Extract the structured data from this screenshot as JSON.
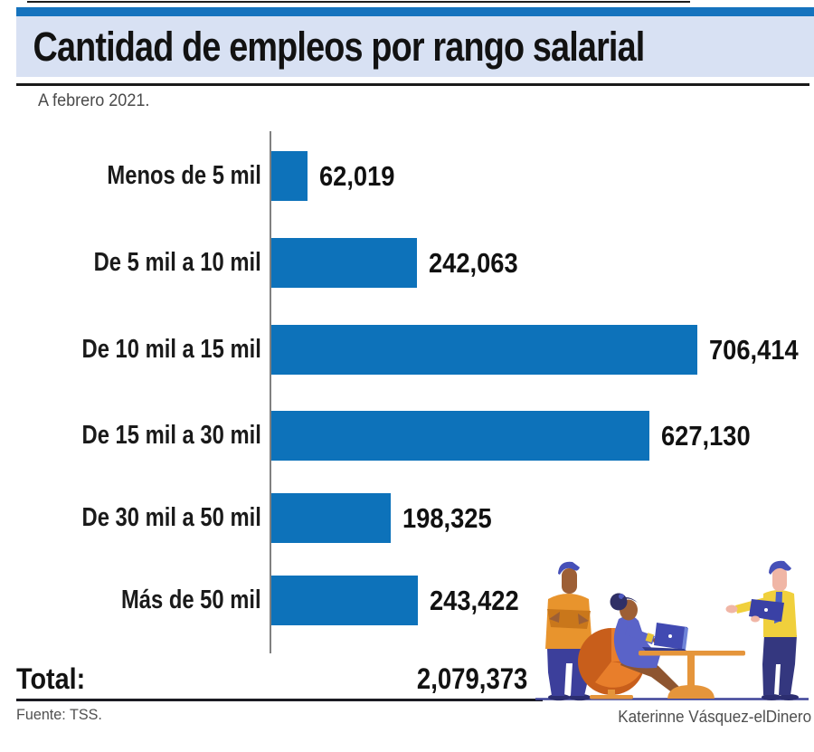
{
  "header": {
    "title": "Cantidad de empleos por rango salarial",
    "subtitle": "A febrero 2021."
  },
  "chart_data": {
    "type": "bar",
    "orientation": "horizontal",
    "title": "Cantidad de empleos por rango salarial",
    "subtitle": "A febrero 2021.",
    "categories": [
      "Menos de 5 mil",
      "De 5 mil a 10 mil",
      "De 10 mil a 15 mil",
      "De 15 mil a 30 mil",
      "De 30 mil a 50 mil",
      "Más de 50 mil"
    ],
    "values": [
      62019,
      242063,
      706414,
      627130,
      198325,
      243422
    ],
    "value_labels": [
      "62,019",
      "242,063",
      "706,414",
      "627,130",
      "198,325",
      "243,422"
    ],
    "xlim": [
      0,
      706414
    ],
    "grid": false,
    "legend": false,
    "bar_color": "#0D72BA",
    "axis_color": "#808080"
  },
  "total": {
    "label": "Total:",
    "value": "2,079,373"
  },
  "footer": {
    "source": "Fuente: TSS.",
    "credit": "Katerinne Vásquez-elDinero"
  },
  "colors": {
    "header_strip_blue": "#1573BE",
    "header_band_lavender": "#D8E1F3",
    "bar_blue": "#0D72BA",
    "illustration_navy": "#3A3F96",
    "illustration_orange": "#E08030",
    "illustration_yellow": "#F0D03C"
  },
  "illustration": {
    "description": "Three office workers: standing man with crossed arms, woman seated at a table with laptop, man holding laptop"
  }
}
